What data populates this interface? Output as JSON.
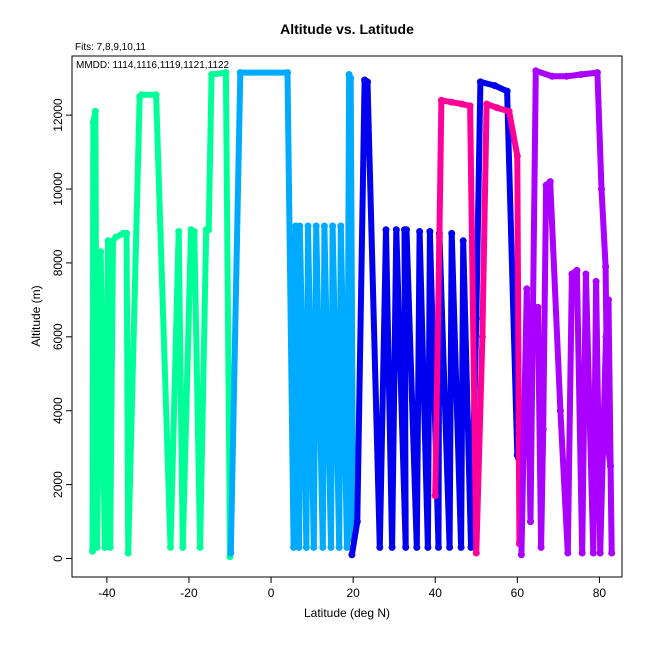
{
  "chart_data": {
    "type": "line",
    "title": "Altitude vs. Latitude",
    "subtitle": "Fits: 7,8,9,10,11",
    "annotation": "MMDD: 1114,1116,1119,1121,1122",
    "xlabel": "Latitude (deg N)",
    "ylabel": "Altitude (m)",
    "xlim": [
      -48.5,
      85.5
    ],
    "ylim": [
      -500,
      13600
    ],
    "xticks": [
      -40,
      -20,
      0,
      20,
      40,
      60,
      80
    ],
    "yticks": [
      0,
      2000,
      4000,
      6000,
      8000,
      10000,
      12000
    ],
    "grid": false,
    "series": [
      {
        "color": "#00FF99",
        "points": [
          [
            -43.5,
            200
          ],
          [
            -43.3,
            11800
          ],
          [
            -42.8,
            12100
          ],
          [
            -42.4,
            300
          ],
          [
            -41.5,
            8300
          ],
          [
            -40.5,
            300
          ],
          [
            -39.7,
            8600
          ],
          [
            -39.2,
            300
          ],
          [
            -38.5,
            8600
          ],
          [
            -37.8,
            8700
          ],
          [
            -36,
            8800
          ],
          [
            -35.2,
            8800
          ],
          [
            -34.8,
            150
          ],
          [
            -32,
            12500
          ],
          [
            -31.5,
            12550
          ],
          [
            -28,
            12550
          ],
          [
            -24.5,
            300
          ],
          [
            -22.5,
            8850
          ],
          [
            -21.5,
            300
          ],
          [
            -19.5,
            8900
          ],
          [
            -18.7,
            8850
          ],
          [
            -17.3,
            300
          ],
          [
            -15.8,
            8900
          ],
          [
            -15.2,
            8900
          ],
          [
            -14.5,
            13100
          ],
          [
            -11,
            13150
          ],
          [
            -10,
            50
          ]
        ]
      },
      {
        "color": "#00AAFF",
        "points": [
          [
            -9.8,
            150
          ],
          [
            -7.5,
            13150
          ],
          [
            4,
            13150
          ],
          [
            5.5,
            300
          ],
          [
            6,
            9000
          ],
          [
            6.8,
            300
          ],
          [
            7,
            9000
          ],
          [
            8.6,
            300
          ],
          [
            9,
            9000
          ],
          [
            10.4,
            300
          ],
          [
            11,
            9000
          ],
          [
            12.6,
            300
          ],
          [
            13,
            9000
          ],
          [
            14.6,
            300
          ],
          [
            15,
            9000
          ],
          [
            16.6,
            300
          ],
          [
            17,
            9000
          ],
          [
            18.5,
            300
          ],
          [
            19,
            13100
          ],
          [
            19.4,
            13000
          ],
          [
            20,
            500
          ]
        ]
      },
      {
        "color": "#0000EE",
        "points": [
          [
            19.7,
            100
          ],
          [
            21,
            1000
          ],
          [
            22.8,
            12950
          ],
          [
            23.5,
            12900
          ],
          [
            26.5,
            300
          ],
          [
            28,
            8900
          ],
          [
            29.5,
            300
          ],
          [
            30.5,
            8900
          ],
          [
            32.8,
            300
          ],
          [
            32.5,
            8900
          ],
          [
            33,
            8900
          ],
          [
            35.5,
            300
          ],
          [
            36.2,
            8850
          ],
          [
            38.2,
            300
          ],
          [
            38.7,
            8850
          ],
          [
            40.8,
            300
          ],
          [
            41,
            8800
          ],
          [
            43.5,
            300
          ],
          [
            44,
            8800
          ],
          [
            46.3,
            300
          ],
          [
            46.8,
            8600
          ],
          [
            48.7,
            300
          ],
          [
            50,
            6500
          ],
          [
            51,
            12900
          ],
          [
            54.5,
            12800
          ],
          [
            57.5,
            12650
          ],
          [
            60,
            2800
          ],
          [
            60.5,
            2600
          ]
        ]
      },
      {
        "color": "#FF0099",
        "points": [
          [
            40,
            1700
          ],
          [
            41,
            8700
          ],
          [
            41.5,
            12400
          ],
          [
            44,
            12350
          ],
          [
            46.5,
            12300
          ],
          [
            48.5,
            12250
          ],
          [
            50,
            150
          ],
          [
            51.5,
            6000
          ],
          [
            52.5,
            12300
          ],
          [
            55,
            12200
          ],
          [
            58,
            12100
          ],
          [
            60,
            10900
          ],
          [
            60.5,
            400
          ]
        ]
      },
      {
        "color": "#AA00FF",
        "points": [
          [
            61,
            100
          ],
          [
            62.3,
            7300
          ],
          [
            63.2,
            1000
          ],
          [
            64.5,
            13200
          ],
          [
            68.5,
            13050
          ],
          [
            72,
            13050
          ],
          [
            75.5,
            13100
          ],
          [
            79.5,
            13150
          ],
          [
            80.5,
            10000
          ],
          [
            81.5,
            7900
          ],
          [
            82,
            3100
          ],
          [
            82.7,
            2500
          ],
          [
            83,
            150
          ],
          [
            82.2,
            7000
          ],
          [
            81.6,
            6000
          ],
          [
            80.2,
            150
          ],
          [
            79.2,
            7500
          ],
          [
            78.5,
            150
          ],
          [
            76.7,
            7700
          ],
          [
            75.8,
            150
          ],
          [
            74.5,
            7800
          ],
          [
            73.3,
            7700
          ],
          [
            72.3,
            150
          ],
          [
            70.5,
            4000
          ],
          [
            68,
            10200
          ],
          [
            67,
            10100
          ],
          [
            66.3,
            3500
          ],
          [
            65.8,
            300
          ],
          [
            65,
            6800
          ]
        ]
      }
    ]
  }
}
